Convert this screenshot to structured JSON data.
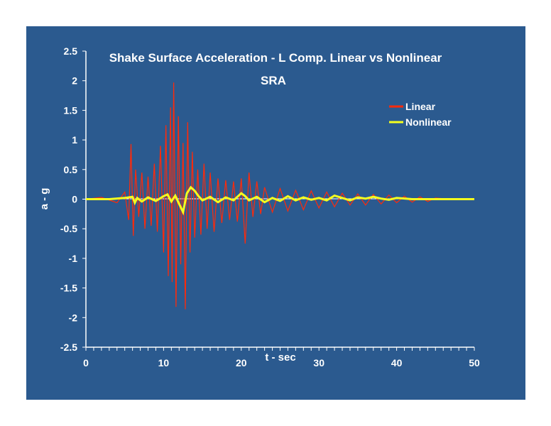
{
  "chart_data": {
    "type": "line",
    "title_line1": "Shake Surface Acceleration - L Comp. Linear vs Nonlinear",
    "title_line2": "SRA",
    "xlabel": "t - sec",
    "ylabel": "a - g",
    "xlim": [
      0,
      50
    ],
    "ylim": [
      -2.5,
      2.5
    ],
    "x_ticks": [
      "0",
      "10",
      "20",
      "30",
      "40",
      "50"
    ],
    "y_ticks": [
      "2.5",
      "2",
      "1.5",
      "1",
      "0.5",
      "0",
      "-0.5",
      "-1",
      "-1.5",
      "-2",
      "-2.5"
    ],
    "grid": false,
    "legend_position": "top-right",
    "colors": {
      "background": "#2b5a8f",
      "axis": "#ffffff",
      "linear": "#ff2a0a",
      "nonlinear": "#f5ff1e"
    },
    "series": [
      {
        "name": "Linear",
        "color": "#ff2a0a",
        "x": [
          0,
          2,
          4,
          5,
          5.5,
          5.8,
          6.1,
          6.4,
          6.8,
          7.2,
          7.6,
          8.0,
          8.4,
          8.8,
          9.2,
          9.6,
          10.0,
          10.3,
          10.6,
          10.9,
          11.1,
          11.3,
          11.6,
          11.9,
          12.2,
          12.5,
          12.8,
          13.1,
          13.4,
          13.7,
          14.0,
          14.4,
          14.8,
          15.2,
          15.6,
          16.0,
          16.5,
          17.0,
          17.5,
          18.0,
          18.5,
          19.0,
          19.5,
          20.0,
          20.5,
          21.0,
          21.5,
          22.0,
          22.5,
          23.0,
          24.0,
          25.0,
          26.0,
          27.0,
          28.0,
          29.0,
          30.0,
          31.0,
          32.0,
          33.0,
          34.0,
          35.0,
          36.0,
          37.0,
          38.0,
          39.0,
          40.0,
          41.0,
          42.0,
          43.0,
          44.0,
          45.0,
          46.0,
          48.0,
          50.0
        ],
        "y": [
          0,
          0.03,
          -0.06,
          0.12,
          -0.35,
          0.93,
          -0.62,
          0.5,
          -0.3,
          0.45,
          -0.5,
          0.38,
          -0.45,
          0.6,
          -0.55,
          0.9,
          -0.9,
          1.25,
          -1.3,
          1.55,
          -1.4,
          1.97,
          -1.82,
          1.4,
          -1.1,
          0.95,
          -1.86,
          1.3,
          -0.9,
          0.8,
          -0.65,
          0.5,
          -0.6,
          0.6,
          -0.5,
          0.45,
          -0.55,
          0.35,
          -0.4,
          0.32,
          -0.35,
          0.3,
          -0.38,
          0.35,
          -0.75,
          0.45,
          -0.3,
          0.3,
          -0.25,
          0.2,
          -0.22,
          0.18,
          -0.2,
          0.15,
          -0.18,
          0.14,
          -0.15,
          0.12,
          -0.13,
          0.1,
          -0.1,
          0.09,
          -0.1,
          0.08,
          -0.08,
          0.07,
          -0.06,
          0.05,
          -0.05,
          0.04,
          -0.04,
          0.02,
          0.01,
          0,
          0
        ]
      },
      {
        "name": "Nonlinear",
        "color": "#f5ff1e",
        "x": [
          0,
          3,
          5,
          6,
          6.3,
          6.6,
          7.2,
          8,
          9,
          10,
          10.5,
          11,
          11.5,
          12,
          12.5,
          13,
          13.5,
          14,
          14.5,
          15,
          16,
          17,
          18,
          19,
          20,
          20.5,
          21,
          22,
          23,
          24,
          25,
          26,
          27,
          28,
          29,
          30,
          31,
          32,
          33,
          34,
          35,
          36,
          37,
          38,
          39,
          40,
          42,
          44,
          46,
          50
        ],
        "y": [
          0,
          0,
          0.02,
          0.04,
          -0.06,
          0.02,
          -0.04,
          0.03,
          -0.03,
          0.05,
          0.08,
          -0.04,
          0.06,
          -0.08,
          -0.22,
          0.1,
          0.2,
          0.14,
          0.05,
          -0.02,
          0.04,
          -0.05,
          0.03,
          -0.02,
          0.1,
          0.05,
          -0.02,
          0.04,
          -0.05,
          0.02,
          -0.03,
          0.05,
          -0.02,
          0.03,
          -0.01,
          0.02,
          -0.02,
          0.06,
          0.02,
          -0.02,
          0.03,
          0.01,
          0.04,
          0.01,
          -0.01,
          0.02,
          0,
          0,
          0,
          0
        ]
      }
    ]
  }
}
